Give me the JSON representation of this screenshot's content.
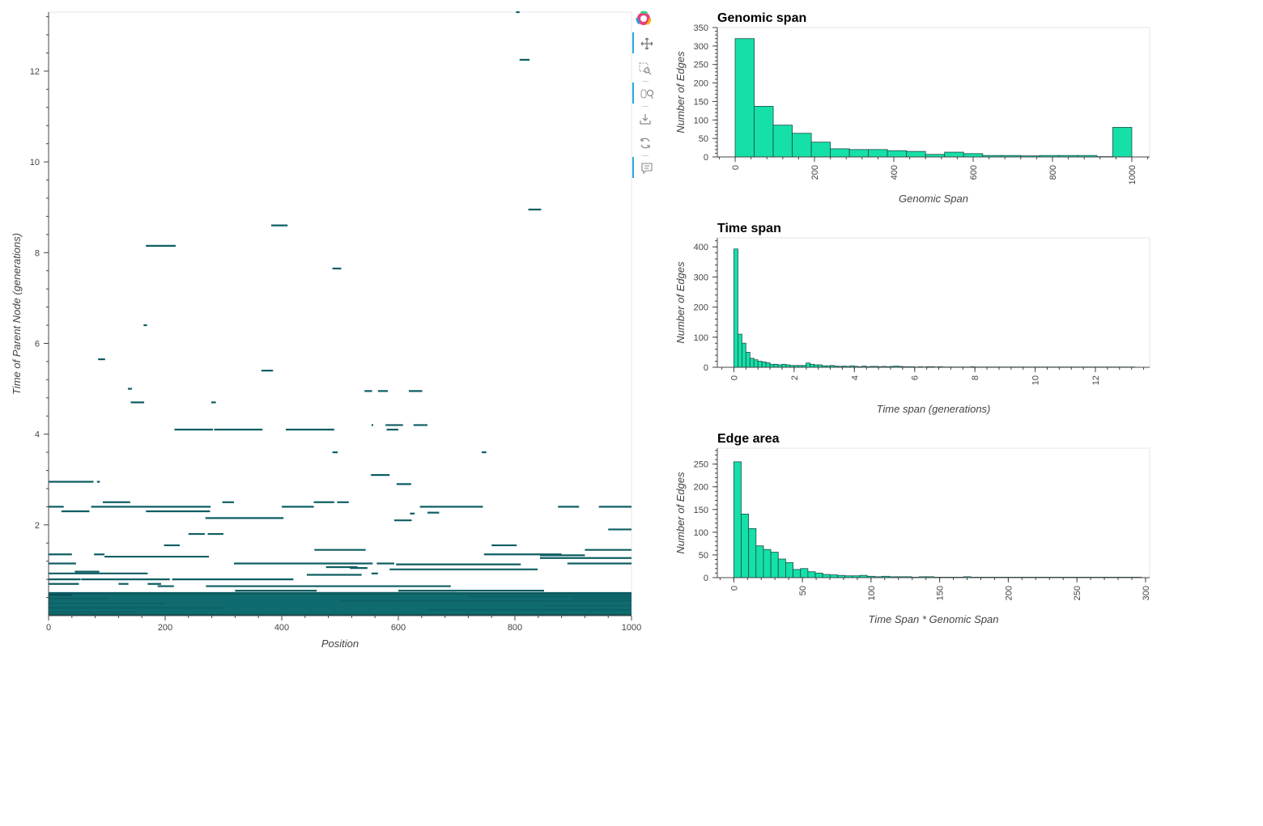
{
  "colors": {
    "edge": "#0e5e63",
    "edge_dense": "#0b4f57",
    "bar_fill": "#15e0a7",
    "bar_stroke": "#1a4d4a",
    "axis": "#444444",
    "frame": "#e5e5e5",
    "toolbar_active": "#26aae1"
  },
  "toolbar": {
    "tools": [
      {
        "name": "bokeh-logo-icon",
        "interactable": false
      },
      {
        "name": "pan-icon",
        "active": true
      },
      {
        "name": "box-zoom-icon",
        "active": false
      },
      {
        "name": "wheel-zoom-icon",
        "active": true
      },
      {
        "name": "save-icon",
        "active": false
      },
      {
        "name": "reset-icon",
        "active": false
      },
      {
        "name": "hover-icon",
        "active": true
      }
    ]
  },
  "chart_data": [
    {
      "id": "edge_plot",
      "type": "segments",
      "title": "",
      "xlabel": "Position",
      "ylabel": "Time of Parent Node (generations)",
      "xlim": [
        0,
        1000
      ],
      "ylim": [
        0,
        13.3
      ],
      "xticks": [
        0,
        200,
        400,
        600,
        800,
        1000
      ],
      "yticks": [
        2,
        4,
        6,
        8,
        10,
        12
      ],
      "xtick_labels": [
        "0",
        "200",
        "400",
        "600",
        "800",
        "1000"
      ],
      "ytick_labels": [
        "2",
        "4",
        "6",
        "8",
        "10",
        "12"
      ],
      "segments": [
        [
          802,
          808,
          13.3
        ],
        [
          808,
          825,
          12.25
        ],
        [
          823,
          845,
          8.95
        ],
        [
          382,
          410,
          8.6
        ],
        [
          167,
          218,
          8.15
        ],
        [
          487,
          502,
          7.65
        ],
        [
          163,
          169,
          6.4
        ],
        [
          85,
          97,
          5.65
        ],
        [
          365,
          385,
          5.4
        ],
        [
          136,
          143,
          5.0
        ],
        [
          542,
          555,
          4.95
        ],
        [
          565,
          582,
          4.95
        ],
        [
          618,
          641,
          4.95
        ],
        [
          141,
          164,
          4.7
        ],
        [
          279,
          287,
          4.7
        ],
        [
          554,
          557,
          4.2
        ],
        [
          578,
          608,
          4.2
        ],
        [
          626,
          650,
          4.2
        ],
        [
          216,
          282,
          4.1
        ],
        [
          284,
          367,
          4.1
        ],
        [
          407,
          490,
          4.1
        ],
        [
          580,
          600,
          4.1
        ],
        [
          487,
          496,
          3.6
        ],
        [
          743,
          751,
          3.6
        ],
        [
          553,
          585,
          3.1
        ],
        [
          0,
          77,
          2.95
        ],
        [
          83,
          88,
          2.95
        ],
        [
          597,
          622,
          2.9
        ],
        [
          93,
          140,
          2.5
        ],
        [
          298,
          318,
          2.5
        ],
        [
          455,
          490,
          2.5
        ],
        [
          495,
          515,
          2.5
        ],
        [
          0,
          26,
          2.4
        ],
        [
          73,
          278,
          2.4
        ],
        [
          400,
          455,
          2.4
        ],
        [
          637,
          745,
          2.4
        ],
        [
          874,
          910,
          2.4
        ],
        [
          944,
          1000,
          2.4
        ],
        [
          22,
          70,
          2.3
        ],
        [
          167,
          277,
          2.3
        ],
        [
          620,
          628,
          2.25
        ],
        [
          650,
          670,
          2.27
        ],
        [
          269,
          403,
          2.15
        ],
        [
          593,
          623,
          2.1
        ],
        [
          960,
          1000,
          1.9
        ],
        [
          240,
          268,
          1.8
        ],
        [
          273,
          300,
          1.8
        ],
        [
          198,
          225,
          1.55
        ],
        [
          760,
          803,
          1.55
        ],
        [
          456,
          544,
          1.45
        ],
        [
          920,
          1000,
          1.45
        ],
        [
          747,
          880,
          1.35
        ],
        [
          843,
          920,
          1.33
        ],
        [
          0,
          40,
          1.35
        ],
        [
          78,
          96,
          1.35
        ],
        [
          96,
          275,
          1.3
        ],
        [
          843,
          1000,
          1.27
        ],
        [
          470,
          556,
          1.15
        ],
        [
          0,
          47,
          1.15
        ],
        [
          318,
          470,
          1.15
        ],
        [
          563,
          593,
          1.15
        ],
        [
          596,
          810,
          1.13
        ],
        [
          890,
          1000,
          1.15
        ],
        [
          476,
          530,
          1.07
        ],
        [
          585,
          839,
          1.02
        ],
        [
          517,
          547,
          1.05
        ],
        [
          554,
          565,
          0.93
        ],
        [
          0,
          170,
          0.93
        ],
        [
          45,
          87,
          0.97
        ],
        [
          443,
          537,
          0.9
        ],
        [
          0,
          55,
          0.8
        ],
        [
          56,
          208,
          0.8
        ],
        [
          212,
          420,
          0.8
        ],
        [
          0,
          52,
          0.7
        ],
        [
          120,
          137,
          0.7
        ],
        [
          170,
          193,
          0.7
        ],
        [
          187,
          215,
          0.65
        ],
        [
          270,
          463,
          0.65
        ],
        [
          460,
          690,
          0.65
        ],
        [
          320,
          460,
          0.55
        ],
        [
          0,
          1000,
          0.5
        ],
        [
          317,
          700,
          0.5
        ],
        [
          600,
          850,
          0.55
        ],
        [
          0,
          1000,
          0.4
        ],
        [
          0,
          1000,
          0.35
        ],
        [
          0,
          1000,
          0.3
        ],
        [
          0,
          1000,
          0.25
        ],
        [
          0,
          1000,
          0.2
        ],
        [
          0,
          1000,
          0.15
        ],
        [
          0,
          1000,
          0.1
        ],
        [
          0,
          1000,
          0.05
        ],
        [
          40,
          1000,
          0.45
        ],
        [
          0,
          720,
          0.42
        ],
        [
          100,
          900,
          0.38
        ],
        [
          0,
          500,
          0.33
        ],
        [
          200,
          1000,
          0.28
        ],
        [
          0,
          850,
          0.22
        ],
        [
          300,
          1000,
          0.18
        ],
        [
          0,
          650,
          0.12
        ],
        [
          150,
          1000,
          0.08
        ]
      ]
    },
    {
      "id": "genomic_span",
      "type": "bar",
      "title": "Genomic span",
      "xlabel": "Genomic Span",
      "ylabel": "Number of Edges",
      "xlim": [
        -45,
        1045
      ],
      "ylim": [
        0,
        350
      ],
      "xticks": [
        0,
        200,
        400,
        600,
        800,
        1000
      ],
      "yticks": [
        0,
        50,
        100,
        150,
        200,
        250,
        300,
        350
      ],
      "xtick_labels": [
        "0",
        "200",
        "400",
        "600",
        "800",
        "1000"
      ],
      "ytick_labels": [
        "0",
        "50",
        "100",
        "150",
        "200",
        "250",
        "300",
        "350"
      ],
      "bin_width": 48,
      "bins_start": [
        0,
        48,
        96,
        144,
        192,
        240,
        288,
        336,
        384,
        432,
        480,
        528,
        576,
        624,
        672,
        720,
        768,
        816,
        864,
        912,
        952
      ],
      "values": [
        320,
        137,
        86,
        64,
        40,
        22,
        20,
        20,
        17,
        15,
        7,
        13,
        9,
        4,
        4,
        3,
        4,
        4,
        4,
        1,
        80
      ]
    },
    {
      "id": "time_span",
      "type": "bar",
      "title": "Time span",
      "xlabel": "Time span (generations)",
      "ylabel": "Number of Edges",
      "xlim": [
        -0.55,
        13.8
      ],
      "ylim": [
        0,
        430
      ],
      "xticks": [
        0,
        2,
        4,
        6,
        8,
        10,
        12
      ],
      "yticks": [
        0,
        100,
        200,
        300,
        400
      ],
      "xtick_labels": [
        "0",
        "2",
        "4",
        "6",
        "8",
        "10",
        "12"
      ],
      "ytick_labels": [
        "0",
        "100",
        "200",
        "300",
        "400"
      ],
      "bin_width": 0.1331,
      "values": [
        393,
        110,
        80,
        50,
        30,
        25,
        20,
        18,
        15,
        10,
        10,
        8,
        10,
        8,
        6,
        6,
        6,
        6,
        14,
        10,
        8,
        8,
        5,
        5,
        6,
        4,
        3,
        4,
        3,
        5,
        3,
        2,
        4,
        2,
        3,
        3,
        2,
        3,
        2,
        3,
        4,
        3,
        2,
        2,
        2,
        1,
        2,
        1,
        2,
        2,
        1,
        2,
        1,
        1,
        1,
        1,
        1,
        1,
        1,
        2,
        1,
        1,
        1,
        1,
        1,
        1,
        1,
        1,
        1,
        1,
        1,
        1,
        1,
        1,
        1,
        1,
        1,
        1,
        1,
        1,
        1,
        1,
        1,
        1,
        1,
        1,
        1,
        1,
        1,
        1,
        1,
        1,
        1,
        1,
        1,
        1,
        1,
        1,
        1,
        1
      ]
    },
    {
      "id": "edge_area",
      "type": "bar",
      "title": "Edge area",
      "xlabel": "Time Span * Genomic Span",
      "ylabel": "Number of Edges",
      "xlim": [
        -12,
        303
      ],
      "ylim": [
        0,
        285
      ],
      "xticks": [
        0,
        50,
        100,
        150,
        200,
        250,
        300
      ],
      "yticks": [
        0,
        50,
        100,
        150,
        200,
        250
      ],
      "xtick_labels": [
        "0",
        "50",
        "100",
        "150",
        "200",
        "250",
        "300"
      ],
      "ytick_labels": [
        "0",
        "50",
        "100",
        "150",
        "200",
        "250"
      ],
      "bin_width": 5.4,
      "values": [
        255,
        140,
        108,
        70,
        62,
        56,
        41,
        33,
        18,
        20,
        13,
        10,
        7,
        6,
        5,
        4,
        4,
        5,
        3,
        2,
        3,
        2,
        2,
        2,
        1,
        2,
        2,
        1,
        1,
        1,
        1,
        2,
        1,
        1,
        1,
        1,
        1,
        1,
        1,
        1,
        1,
        1,
        1,
        1,
        1,
        1,
        1,
        1,
        1,
        1,
        1,
        1,
        1,
        1,
        1
      ]
    }
  ]
}
